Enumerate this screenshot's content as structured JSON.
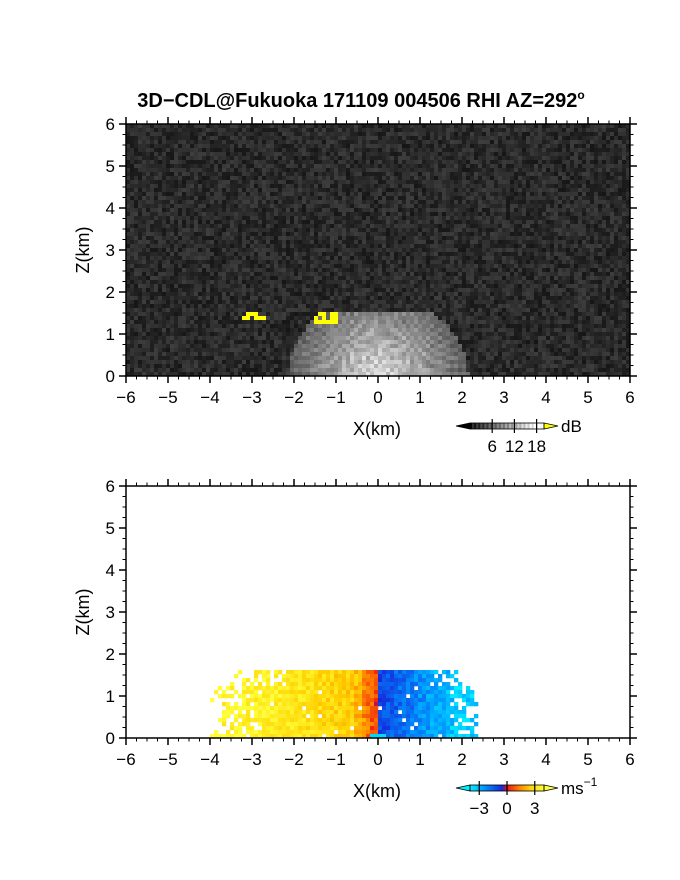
{
  "chart_data": [
    {
      "type": "heatmap",
      "title": "3D−CDL@Fukuoka 171109 004506 RHI AZ=292",
      "title_superscript": "o",
      "xlabel": "X(km)",
      "ylabel": "Z(km)",
      "xlim": [
        -6,
        6
      ],
      "ylim": [
        0,
        6
      ],
      "x_ticks": [
        "−6",
        "−5",
        "−4",
        "−3",
        "−2",
        "−1",
        "0",
        "1",
        "2",
        "3",
        "4",
        "5",
        "6"
      ],
      "y_ticks": [
        "0",
        "1",
        "2",
        "3",
        "4",
        "5",
        "6"
      ],
      "colorbar": {
        "unit": "dB",
        "ticks": [
          "6",
          "12",
          "18"
        ],
        "tick_values": [
          6,
          12,
          18
        ],
        "range": [
          0,
          20
        ],
        "colormap": "gray",
        "over_color": "#ffff00"
      },
      "features": {
        "echo_fan_center_km": [
          0,
          0
        ],
        "echo_fan_max_range_km": 1.95,
        "echo_fan_top_km": 1.5,
        "yellow_patches_km": [
          [
            -2.95,
            1.45
          ],
          [
            -1.2,
            1.38
          ]
        ]
      }
    },
    {
      "type": "heatmap",
      "xlabel": "X(km)",
      "ylabel": "Z(km)",
      "xlim": [
        -6,
        6
      ],
      "ylim": [
        0,
        6
      ],
      "x_ticks": [
        "−6",
        "−5",
        "−4",
        "−3",
        "−2",
        "−1",
        "0",
        "1",
        "2",
        "3",
        "4",
        "5",
        "6"
      ],
      "y_ticks": [
        "0",
        "1",
        "2",
        "3",
        "4",
        "5",
        "6"
      ],
      "colorbar": {
        "unit": "ms",
        "unit_superscript": "−1",
        "ticks": [
          "−3",
          "0",
          "3"
        ],
        "tick_values": [
          -3,
          0,
          3
        ],
        "range": [
          -4,
          4
        ],
        "colormap": "cyan-blue-red-yellow"
      },
      "features": {
        "velocity_region_x_km": [
          -4.0,
          2.4
        ],
        "velocity_region_top_km": 1.6,
        "sign_change_x_km": 0.0
      }
    }
  ]
}
